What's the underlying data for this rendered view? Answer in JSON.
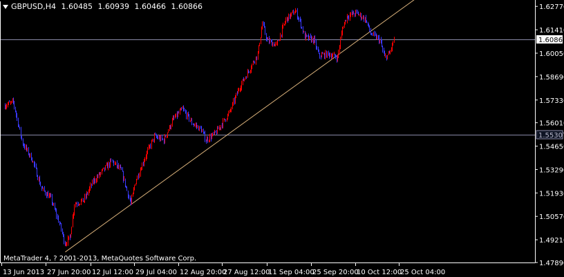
{
  "header": {
    "symbol": "GBPUSD,H4",
    "open": "1.60485",
    "high": "1.60939",
    "low": "1.60466",
    "close": "1.60866"
  },
  "copyright": "MetaTrader 4, ? 2001-2013, MetaQuotes Software Corp.",
  "colors": {
    "background": "#000000",
    "frame": "#ffffff",
    "bull": "#ff0000",
    "bear": "#3a3aff",
    "trendline": "#d8b07a",
    "hline": "#8a8aa8",
    "text": "#ffffff"
  },
  "chart_data": {
    "type": "candlestick",
    "symbol": "GBPUSD",
    "timeframe": "H4",
    "ylim": [
      1.4789,
      1.6306
    ],
    "y_ticks": [
      "1.62770",
      "1.61410",
      "1.60050",
      "1.58690",
      "1.57330",
      "1.56010",
      "1.54650",
      "1.53290",
      "1.51930",
      "1.50570",
      "1.49210",
      "1.47890"
    ],
    "x_tick_labels": [
      "13 Jun 2013",
      "27 Jun 20:00",
      "12 Jul 12:00",
      "29 Jul 04:00",
      "12 Aug 20:00",
      "27 Aug 12:00",
      "11 Sep 04:00",
      "25 Sep 20:00",
      "10 Oct 12:00",
      "25 Oct 04:00"
    ],
    "horizontal_lines": [
      {
        "label": "1.60866",
        "value": 1.60866
      },
      {
        "label": "1.55307",
        "value": 1.55307
      }
    ],
    "trendline": {
      "from": {
        "bar": 13,
        "price": 1.485
      },
      "to": {
        "bar": 89,
        "price": 1.635
      }
    },
    "price_path": [
      {
        "bar": 0,
        "price": 1.57
      },
      {
        "bar": 2,
        "price": 1.572
      },
      {
        "bar": 3,
        "price": 1.56
      },
      {
        "bar": 4,
        "price": 1.548
      },
      {
        "bar": 6,
        "price": 1.539
      },
      {
        "bar": 8,
        "price": 1.522
      },
      {
        "bar": 10,
        "price": 1.516
      },
      {
        "bar": 12,
        "price": 1.5
      },
      {
        "bar": 13,
        "price": 1.49
      },
      {
        "bar": 14,
        "price": 1.493
      },
      {
        "bar": 15,
        "price": 1.513
      },
      {
        "bar": 17,
        "price": 1.515
      },
      {
        "bar": 19,
        "price": 1.526
      },
      {
        "bar": 21,
        "price": 1.532
      },
      {
        "bar": 23,
        "price": 1.538
      },
      {
        "bar": 25,
        "price": 1.532
      },
      {
        "bar": 27,
        "price": 1.513
      },
      {
        "bar": 28,
        "price": 1.526
      },
      {
        "bar": 30,
        "price": 1.54
      },
      {
        "bar": 32,
        "price": 1.552
      },
      {
        "bar": 34,
        "price": 1.55
      },
      {
        "bar": 36,
        "price": 1.562
      },
      {
        "bar": 38,
        "price": 1.568
      },
      {
        "bar": 40,
        "price": 1.56
      },
      {
        "bar": 42,
        "price": 1.556
      },
      {
        "bar": 43,
        "price": 1.55
      },
      {
        "bar": 45,
        "price": 1.554
      },
      {
        "bar": 48,
        "price": 1.566
      },
      {
        "bar": 50,
        "price": 1.58
      },
      {
        "bar": 52,
        "price": 1.59
      },
      {
        "bar": 54,
        "price": 1.6
      },
      {
        "bar": 55,
        "price": 1.618
      },
      {
        "bar": 56,
        "price": 1.608
      },
      {
        "bar": 58,
        "price": 1.605
      },
      {
        "bar": 60,
        "price": 1.62
      },
      {
        "bar": 62,
        "price": 1.625
      },
      {
        "bar": 63,
        "price": 1.619
      },
      {
        "bar": 64,
        "price": 1.61
      },
      {
        "bar": 66,
        "price": 1.608
      },
      {
        "bar": 67,
        "price": 1.599
      },
      {
        "bar": 69,
        "price": 1.6
      },
      {
        "bar": 71,
        "price": 1.598
      },
      {
        "bar": 72,
        "price": 1.615
      },
      {
        "bar": 73,
        "price": 1.622
      },
      {
        "bar": 75,
        "price": 1.624
      },
      {
        "bar": 77,
        "price": 1.62
      },
      {
        "bar": 78,
        "price": 1.612
      },
      {
        "bar": 80,
        "price": 1.608
      },
      {
        "bar": 81,
        "price": 1.598
      },
      {
        "bar": 82,
        "price": 1.6
      },
      {
        "bar": 83,
        "price": 1.6087
      }
    ]
  }
}
